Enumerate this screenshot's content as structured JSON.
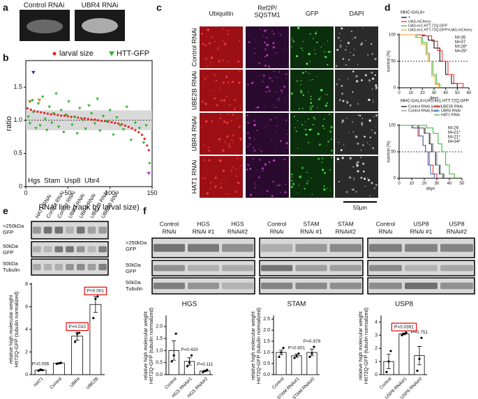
{
  "panel_labels": [
    "a",
    "b",
    "c",
    "d",
    "e",
    "f"
  ],
  "panel_a": {
    "labels": [
      "Control RNAi",
      "UBR4 RNAi"
    ]
  },
  "panel_c": {
    "column_headers": [
      [
        "Ubiquitin"
      ],
      [
        "Ref2P/",
        "SQSTM1"
      ],
      [
        "GFP"
      ],
      [
        "DAPI"
      ]
    ],
    "rows": [
      "Control RNAi",
      "UBE2B RNAi",
      "UBR4 RNAi",
      "HAT1 RNAi"
    ],
    "scale_bar": "50μm"
  },
  "panel_e_blot": {
    "lanes": [
      "HAT1 RNAi",
      "Control RNAi",
      "Control RNAi",
      "UBR4 RNAi",
      "UBR4 RNAi",
      "UBE2B RNAi",
      "UBE2B RNAi"
    ],
    "row_labels": [
      [
        ">250kDa",
        "GFP"
      ],
      [
        "50kDa",
        "GFP"
      ],
      [
        "50kDa",
        "Tubulin"
      ]
    ]
  },
  "panel_f_blot": {
    "groups": [
      {
        "lanes": [
          [
            "Control",
            "RNAi"
          ],
          [
            "HGS",
            "RNAi #1"
          ],
          [
            "HGS",
            "RNAi#2"
          ]
        ]
      },
      {
        "lanes": [
          [
            "Control",
            "RNAi"
          ],
          [
            "STAM",
            "RNAi #1"
          ],
          [
            "STAM",
            "RNAi#2"
          ]
        ]
      },
      {
        "lanes": [
          [
            "Control",
            "RNAi"
          ],
          [
            "USP8",
            "RNAi #1"
          ],
          [
            "USP8",
            "RNAi#2"
          ]
        ]
      }
    ],
    "row_labels": [
      [
        ">250kDa",
        "GFP"
      ],
      [
        "50kDa",
        "GFP"
      ],
      [
        "50kDa",
        "Tubulin"
      ]
    ]
  },
  "chart_data": [
    {
      "type": "scatter",
      "xlabel": "RNAi line (rank by larval size)",
      "ylabel": "ratio",
      "xlim": [
        0,
        150
      ],
      "xticks": [
        0,
        50,
        100,
        150
      ],
      "ylim": [
        0,
        1.9
      ],
      "yticks": [
        0,
        0.5,
        {
          "value": 1,
          "label": "1.0"
        },
        1.5
      ],
      "band": [
        0.85,
        1.15
      ],
      "reference_line": 1,
      "series": [
        {
          "name": "larval size",
          "color": "#e8231f",
          "marker": "circle",
          "x": [
            2,
            6,
            10,
            14,
            18,
            22,
            26,
            30,
            34,
            38,
            42,
            46,
            50,
            54,
            58,
            62,
            66,
            70,
            74,
            78,
            82,
            86,
            90,
            94,
            98,
            102,
            106,
            110,
            114,
            118,
            122,
            126,
            130,
            134,
            138,
            141,
            144,
            146
          ],
          "values": [
            1.18,
            1.16,
            1.14,
            1.13,
            1.12,
            1.11,
            1.1,
            1.09,
            1.09,
            1.08,
            1.07,
            1.07,
            1.06,
            1.05,
            1.05,
            1.04,
            1.03,
            1.03,
            1.02,
            1.01,
            1.01,
            1.0,
            0.99,
            0.99,
            0.98,
            0.97,
            0.96,
            0.95,
            0.94,
            0.92,
            0.9,
            0.88,
            0.85,
            0.82,
            0.78,
            0.72,
            0.62,
            0.55
          ]
        },
        {
          "name": "HTT-GFP",
          "color": "#2db52d",
          "marker": "triangle",
          "x": [
            3,
            5,
            8,
            9,
            12,
            15,
            17,
            20,
            23,
            25,
            28,
            31,
            33,
            36,
            39,
            42,
            45,
            48,
            51,
            55,
            58,
            61,
            64,
            68,
            71,
            75,
            78,
            82,
            85,
            88,
            92,
            96,
            100,
            104,
            108,
            112,
            116,
            120,
            125,
            130,
            135,
            140,
            143,
            147
          ],
          "values": [
            1.05,
            0.95,
            1.3,
            1.12,
            0.88,
            1.25,
            0.92,
            1.35,
            1.02,
            0.85,
            1.2,
            0.96,
            1.1,
            1.4,
            0.9,
            1.15,
            0.82,
            1.08,
            1.28,
            0.93,
            1.05,
            0.8,
            1.18,
            1.0,
            0.87,
            1.22,
            1.1,
            0.95,
            1.32,
            0.84,
            1.06,
            0.98,
            1.15,
            0.78,
            1.04,
            0.92,
            0.86,
            1.2,
            0.7,
            0.96,
            0.88,
            0.66,
            0.92,
            0.35
          ]
        }
      ],
      "highlights": [
        {
          "name": "Hgs",
          "color": "#8a8a1a",
          "x": 5,
          "y": 1.28
        },
        {
          "name": "Stam",
          "color": "#f07f1a",
          "x": 16,
          "y": 1.3
        },
        {
          "name": "Usp8",
          "color": "#c03ac0",
          "x": 146,
          "y": 0.2
        },
        {
          "name": "Ubr4",
          "color": "#2a2ac0",
          "x": 9,
          "y": 1.72
        }
      ]
    },
    {
      "type": "line",
      "title": "MHC-GAL4>",
      "xlabel": "days",
      "ylabel": "survival (%)",
      "xlim": [
        0,
        60
      ],
      "xticks": [
        0,
        10,
        20,
        30,
        40,
        50,
        60
      ],
      "ylim": [
        0,
        100
      ],
      "yticks": [
        0,
        50,
        100
      ],
      "reference_line": 50,
      "series": [
        {
          "name": "+",
          "color": "#000000",
          "x": [
            0,
            20,
            25,
            30,
            35,
            40,
            45,
            50
          ],
          "values": [
            100,
            98,
            90,
            75,
            50,
            25,
            8,
            0
          ]
        },
        {
          "name": "UAS.mCherry",
          "color": "#e8231f",
          "x": [
            0,
            22,
            28,
            33,
            37,
            42,
            47,
            55
          ],
          "values": [
            100,
            98,
            88,
            70,
            50,
            25,
            8,
            0
          ]
        },
        {
          "name": "UAS.ex1.HTT.72Q.GFP",
          "color": "#2db52d",
          "x": [
            0,
            15,
            20,
            24,
            26,
            29,
            32,
            35
          ],
          "values": [
            100,
            95,
            85,
            65,
            50,
            25,
            8,
            0
          ]
        },
        {
          "name": "UAS.ex1.HTT.72Q.GFP+UAS.mCherry",
          "color": "#f0a020",
          "x": [
            0,
            14,
            19,
            23,
            25,
            28,
            31,
            34
          ],
          "values": [
            100,
            95,
            82,
            62,
            50,
            22,
            6,
            0
          ]
        }
      ],
      "medians": [
        {
          "label": "M=35",
          "color": "#000000"
        },
        {
          "label": "M=37",
          "color": "#e8231f"
        },
        {
          "label": "M=26*",
          "color": "#2db52d"
        },
        {
          "label": "M=25*",
          "color": "#f0a020"
        }
      ]
    },
    {
      "type": "line",
      "title": "MHC-GAL4>UAS.ex1.HTT.72Q.GFP",
      "xlabel": "days",
      "ylabel": "survival (%)",
      "xlim": [
        0,
        50
      ],
      "xticks": [
        0,
        10,
        20,
        30,
        40,
        50
      ],
      "ylim": [
        0,
        100
      ],
      "yticks": [
        0,
        50,
        100
      ],
      "reference_line": 50,
      "series": [
        {
          "name": "Control RNAi (white)",
          "color": "#000000",
          "x": [
            0,
            15,
            20,
            24,
            26,
            29,
            32,
            35
          ],
          "values": [
            100,
            95,
            85,
            65,
            50,
            25,
            8,
            0
          ]
        },
        {
          "name": "Control RNAi (luc)",
          "color": "#888888",
          "x": [
            0,
            16,
            21,
            25,
            27,
            30,
            33,
            36
          ],
          "values": [
            100,
            95,
            85,
            65,
            50,
            25,
            8,
            0
          ]
        },
        {
          "name": "UBE2B RNAi",
          "color": "#e8231f",
          "x": [
            0,
            10,
            15,
            19,
            21,
            24,
            27,
            30
          ],
          "values": [
            100,
            95,
            80,
            62,
            50,
            25,
            8,
            0
          ]
        },
        {
          "name": "UBR4 RNAi",
          "color": "#2a6ad0",
          "x": [
            0,
            11,
            16,
            19,
            21,
            23,
            25,
            28
          ],
          "values": [
            100,
            95,
            80,
            62,
            50,
            25,
            8,
            0
          ]
        },
        {
          "name": "HAT1 RNAi",
          "color": "#2db52d",
          "x": [
            0,
            22,
            27,
            31,
            34,
            37,
            40,
            44
          ],
          "values": [
            100,
            95,
            85,
            65,
            50,
            25,
            8,
            0
          ]
        }
      ],
      "medians": [
        {
          "label": "M=26",
          "color": "#000000"
        },
        {
          "label": "M=21*",
          "color": "#e8231f"
        },
        {
          "label": "M=21*",
          "color": "#c03ac0"
        },
        {
          "label": "M=34*",
          "color": "#2db52d"
        }
      ]
    },
    {
      "type": "bar",
      "ylabel": [
        "relative high molecular weight",
        "Htt72Q-GFP (tubulin normalized)"
      ],
      "categories": [
        "HAT1",
        "Control",
        "UBR4",
        "UBE2B"
      ],
      "values": [
        0.4,
        1.0,
        3.4,
        6.2
      ],
      "errors": [
        0.05,
        0.05,
        0.35,
        0.7
      ],
      "points": [
        [
          0.35,
          0.45,
          0.4
        ],
        [
          0.95,
          1.0,
          1.05
        ],
        [
          2.9,
          3.6,
          3.7
        ],
        [
          5.0,
          6.7,
          6.9
        ]
      ],
      "p_labels": [
        "P=0.056",
        null,
        "P=0.010",
        "P<0.001"
      ],
      "p_boxed": [
        false,
        false,
        true,
        true
      ],
      "ylim": [
        0,
        8
      ],
      "yticks": [
        0,
        2,
        4,
        6,
        8
      ]
    },
    {
      "type": "bar",
      "title": "HGS",
      "ylabel": [
        "relative high molecular weight",
        "Htt72Q-GFP (tubulin normalized)"
      ],
      "categories": [
        "Control",
        "HGS RNAi#1",
        "HGS RNAi#2"
      ],
      "values": [
        1.0,
        0.55,
        0.15
      ],
      "errors": [
        0.4,
        0.15,
        0.03
      ],
      "points": [
        [
          0.55,
          0.8,
          1.7
        ],
        [
          0.35,
          0.5,
          0.8
        ],
        [
          0.1,
          0.15,
          0.2
        ]
      ],
      "p_labels": [
        null,
        "P=0.420",
        "P=0.111"
      ],
      "p_boxed": [
        false,
        false,
        false
      ],
      "ylim": [
        0,
        2.4
      ],
      "yticks": [
        {
          "value": 0,
          "label": "0.0"
        },
        0.5,
        {
          "value": 1,
          "label": "1.0"
        },
        1.5,
        {
          "value": 2,
          "label": "2.0"
        }
      ]
    },
    {
      "type": "bar",
      "title": "STAM",
      "ylabel": [
        "relative high molecular weight",
        "Htt72Q-GFP (tubulin normalized)"
      ],
      "categories": [
        "Control",
        "STAM RNAi#1",
        "STAM RNAi#2"
      ],
      "values": [
        1.0,
        0.85,
        1.0
      ],
      "errors": [
        0.1,
        0.07,
        0.15
      ],
      "points": [
        [
          0.8,
          1.0,
          1.2
        ],
        [
          0.75,
          0.85,
          0.95
        ],
        [
          0.8,
          0.95,
          1.25
        ]
      ],
      "p_labels": [
        null,
        "P=0.601",
        "P=0.978"
      ],
      "p_boxed": [
        false,
        false,
        false
      ],
      "ylim": [
        0,
        2.6
      ],
      "yticks": [
        {
          "value": 0,
          "label": "0.0"
        },
        0.5,
        {
          "value": 1,
          "label": "1.0"
        },
        1.5,
        {
          "value": 2,
          "label": "2.0"
        },
        2.5
      ]
    },
    {
      "type": "bar",
      "title": "USP8",
      "ylabel": [
        "relative high molecular weight",
        "Htt72Q-GFP (tubulin normalized)"
      ],
      "categories": [
        "Control",
        "USP8 RNAi#1",
        "USP8 RNAi#2"
      ],
      "values": [
        1.0,
        3.1,
        1.45
      ],
      "errors": [
        0.55,
        0.07,
        0.7
      ],
      "points": [
        [
          0.2,
          1.0,
          1.8
        ],
        [
          3.0,
          3.1,
          3.2
        ],
        [
          0.3,
          1.2,
          2.8
        ]
      ],
      "p_labels": [
        null,
        "P=0.0391",
        "P=0.751"
      ],
      "p_boxed": [
        false,
        true,
        false
      ],
      "ylim": [
        0,
        4.4
      ],
      "yticks": [
        0,
        1,
        2,
        3,
        4
      ]
    }
  ]
}
